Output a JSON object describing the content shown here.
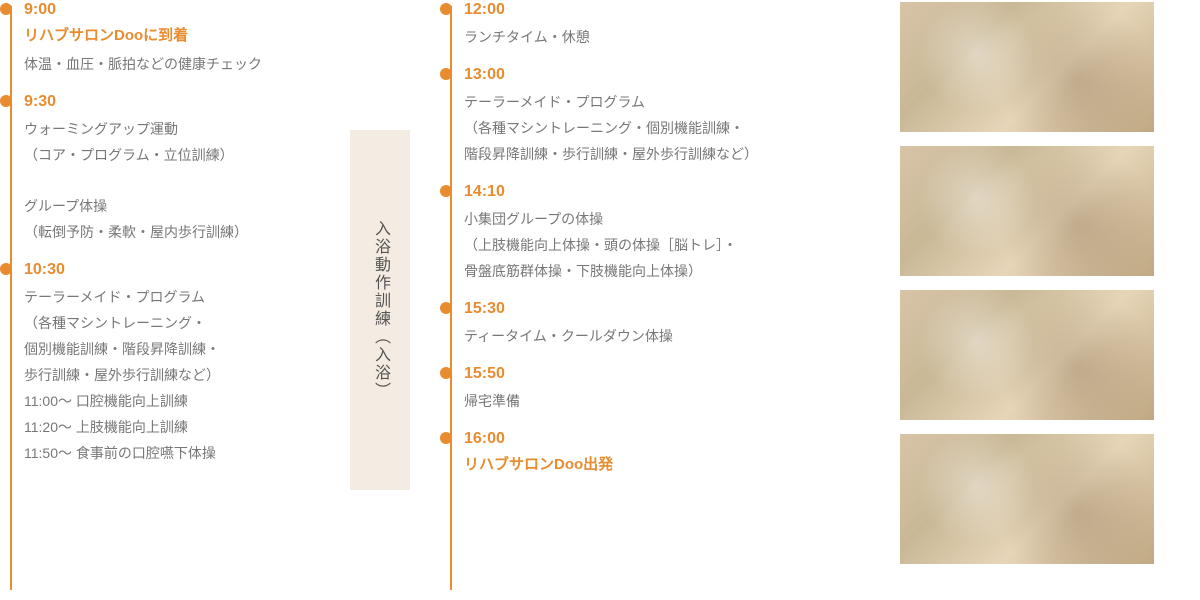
{
  "colors": {
    "accent": "#e88c2f",
    "text_muted": "#777777",
    "bath_bg": "#f4ece3"
  },
  "bath_label": "入浴動作訓練（入浴）",
  "left": [
    {
      "time": "9:00",
      "headline": "リハブサロンDooに到着",
      "desc": "体温・血圧・脈拍などの健康チェック"
    },
    {
      "time": "9:30",
      "desc": "ウォーミングアップ運動\n（コア・プログラム・立位訓練）\n\nグループ体操\n（転倒予防・柔軟・屋内歩行訓練）"
    },
    {
      "time": "10:30",
      "desc": "テーラーメイド・プログラム\n（各種マシントレーニング・\n個別機能訓練・階段昇降訓練・\n歩行訓練・屋外歩行訓練など）\n11:00〜 口腔機能向上訓練\n11:20〜 上肢機能向上訓練\n11:50〜 食事前の口腔嚥下体操"
    }
  ],
  "right": [
    {
      "time": "12:00",
      "desc": "ランチタイム・休憩"
    },
    {
      "time": "13:00",
      "desc": "テーラーメイド・プログラム\n（各種マシントレーニング・個別機能訓練・\n階段昇降訓練・歩行訓練・屋外歩行訓練など）"
    },
    {
      "time": "14:10",
      "desc": "小集団グループの体操\n（上肢機能向上体操・頭の体操［脳トレ］・\n骨盤底筋群体操・下肢機能向上体操）"
    },
    {
      "time": "15:30",
      "desc": "ティータイム・クールダウン体操"
    },
    {
      "time": "15:50",
      "desc": "帰宅準備"
    },
    {
      "time": "16:00",
      "headline": "リハブサロンDoo出発"
    }
  ],
  "photo_count": 4
}
